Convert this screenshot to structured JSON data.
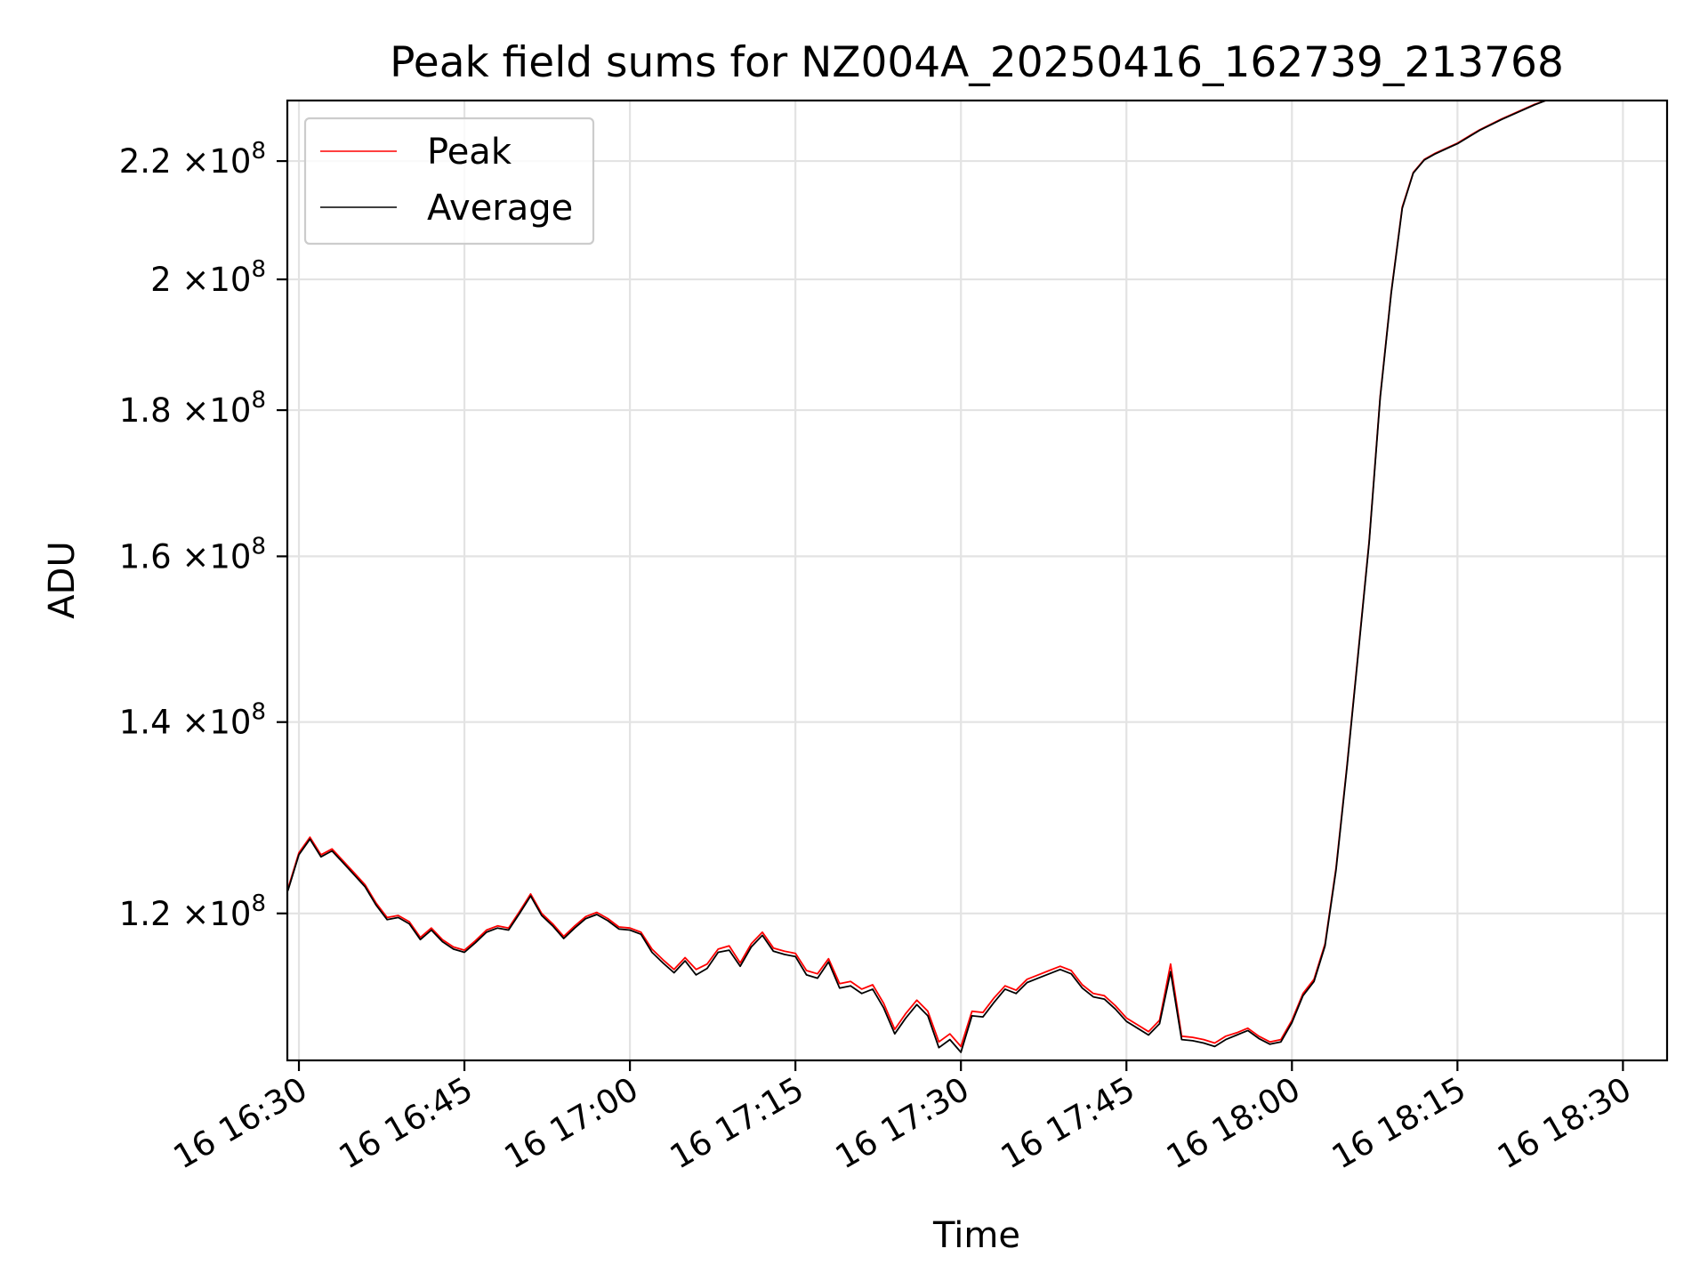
{
  "chart_data": {
    "type": "line",
    "title": "Peak field sums for NZ004A_20250416_162739_213768",
    "xlabel": "Time",
    "ylabel": "ADU",
    "y_scale": "log",
    "grid": true,
    "legend_position": "upper-left",
    "x_ticks": [
      "16 16:30",
      "16 16:45",
      "16 17:00",
      "16 17:15",
      "16 17:30",
      "16 17:45",
      "16 18:00",
      "16 18:15",
      "16 18:30"
    ],
    "y_ticks": [
      {
        "value": 120000000,
        "mantissa": "1.2",
        "times": "×10",
        "exp": "8"
      },
      {
        "value": 140000000,
        "mantissa": "1.4",
        "times": "×10",
        "exp": "8"
      },
      {
        "value": 160000000,
        "mantissa": "1.6",
        "times": "×10",
        "exp": "8"
      },
      {
        "value": 180000000,
        "mantissa": "1.8",
        "times": "×10",
        "exp": "8"
      },
      {
        "value": 200000000,
        "mantissa": "2",
        "times": "×10",
        "exp": "8"
      },
      {
        "value": 220000000,
        "mantissa": "2.2",
        "times": "×10",
        "exp": "8"
      }
    ],
    "xlim": [
      "2025-04-16 16:28:57",
      "2025-04-16 18:34:00"
    ],
    "ylim": [
      106600000,
      231000000
    ],
    "series": [
      {
        "name": "Peak",
        "color": "#ff0000",
        "x": [
          "2025-04-16 16:29:00",
          "2025-04-16 16:30:00",
          "2025-04-16 16:31:00",
          "2025-04-16 16:32:00",
          "2025-04-16 16:33:00",
          "2025-04-16 16:34:00",
          "2025-04-16 16:35:00",
          "2025-04-16 16:36:00",
          "2025-04-16 16:37:00",
          "2025-04-16 16:38:00",
          "2025-04-16 16:39:00",
          "2025-04-16 16:40:00",
          "2025-04-16 16:41:00",
          "2025-04-16 16:42:00",
          "2025-04-16 16:43:00",
          "2025-04-16 16:44:00",
          "2025-04-16 16:45:00",
          "2025-04-16 16:46:00",
          "2025-04-16 16:47:00",
          "2025-04-16 16:48:00",
          "2025-04-16 16:49:00",
          "2025-04-16 16:50:00",
          "2025-04-16 16:51:00",
          "2025-04-16 16:52:00",
          "2025-04-16 16:53:00",
          "2025-04-16 16:54:00",
          "2025-04-16 16:55:00",
          "2025-04-16 16:56:00",
          "2025-04-16 16:57:00",
          "2025-04-16 16:58:00",
          "2025-04-16 16:59:00",
          "2025-04-16 17:00:00",
          "2025-04-16 17:01:00",
          "2025-04-16 17:02:00",
          "2025-04-16 17:03:00",
          "2025-04-16 17:04:00",
          "2025-04-16 17:05:00",
          "2025-04-16 17:06:00",
          "2025-04-16 17:07:00",
          "2025-04-16 17:08:00",
          "2025-04-16 17:09:00",
          "2025-04-16 17:10:00",
          "2025-04-16 17:11:00",
          "2025-04-16 17:12:00",
          "2025-04-16 17:13:00",
          "2025-04-16 17:14:00",
          "2025-04-16 17:15:00",
          "2025-04-16 17:16:00",
          "2025-04-16 17:17:00",
          "2025-04-16 17:18:00",
          "2025-04-16 17:19:00",
          "2025-04-16 17:20:00",
          "2025-04-16 17:21:00",
          "2025-04-16 17:22:00",
          "2025-04-16 17:23:00",
          "2025-04-16 17:24:00",
          "2025-04-16 17:25:00",
          "2025-04-16 17:26:00",
          "2025-04-16 17:27:00",
          "2025-04-16 17:28:00",
          "2025-04-16 17:29:00",
          "2025-04-16 17:30:00",
          "2025-04-16 17:31:00",
          "2025-04-16 17:32:00",
          "2025-04-16 17:33:00",
          "2025-04-16 17:34:00",
          "2025-04-16 17:35:00",
          "2025-04-16 17:36:00",
          "2025-04-16 17:37:00",
          "2025-04-16 17:38:00",
          "2025-04-16 17:39:00",
          "2025-04-16 17:40:00",
          "2025-04-16 17:41:00",
          "2025-04-16 17:42:00",
          "2025-04-16 17:43:00",
          "2025-04-16 17:44:00",
          "2025-04-16 17:45:00",
          "2025-04-16 17:46:00",
          "2025-04-16 17:47:00",
          "2025-04-16 17:48:00",
          "2025-04-16 17:49:00",
          "2025-04-16 17:50:00",
          "2025-04-16 17:51:00",
          "2025-04-16 17:52:00",
          "2025-04-16 17:53:00",
          "2025-04-16 17:54:00",
          "2025-04-16 17:55:00",
          "2025-04-16 17:56:00",
          "2025-04-16 17:57:00",
          "2025-04-16 17:58:00",
          "2025-04-16 17:59:00",
          "2025-04-16 18:00:00",
          "2025-04-16 18:01:00",
          "2025-04-16 18:02:00",
          "2025-04-16 18:03:00",
          "2025-04-16 18:04:00",
          "2025-04-16 18:05:00",
          "2025-04-16 18:06:00",
          "2025-04-16 18:07:00",
          "2025-04-16 18:08:00",
          "2025-04-16 18:09:00",
          "2025-04-16 18:10:00",
          "2025-04-16 18:11:00",
          "2025-04-16 18:12:00",
          "2025-04-16 18:13:00",
          "2025-04-16 18:14:00",
          "2025-04-16 18:15:00",
          "2025-04-16 18:16:00",
          "2025-04-16 18:17:00",
          "2025-04-16 18:18:00",
          "2025-04-16 18:19:00",
          "2025-04-16 18:20:00",
          "2025-04-16 18:21:00",
          "2025-04-16 18:22:00",
          "2025-04-16 18:23:00",
          "2025-04-16 18:24:00"
        ],
        "values": [
          122400000,
          126000000,
          127600000,
          125800000,
          126400000,
          125200000,
          124000000,
          122800000,
          121000000,
          119600000,
          119800000,
          119200000,
          117700000,
          118600000,
          117500000,
          116800000,
          116500000,
          117400000,
          118400000,
          118800000,
          118600000,
          120200000,
          121900000,
          120000000,
          119000000,
          117800000,
          118800000,
          119700000,
          120100000,
          119500000,
          118700000,
          118600000,
          118200000,
          116600000,
          115600000,
          114700000,
          115800000,
          114700000,
          115200000,
          116600000,
          116900000,
          115300000,
          117100000,
          118200000,
          116700000,
          116400000,
          116200000,
          114600000,
          114300000,
          115700000,
          113400000,
          113600000,
          112900000,
          113300000,
          111600000,
          109300000,
          110700000,
          111900000,
          110900000,
          108200000,
          108900000,
          107800000,
          110900000,
          110800000,
          112100000,
          113200000,
          112800000,
          113800000,
          114200000,
          114600000,
          115000000,
          114600000,
          113300000,
          112500000,
          112300000,
          111400000,
          110300000,
          109700000,
          109100000,
          110100000,
          115200000,
          108700000,
          108600000,
          108400000,
          108100000,
          108700000,
          109000000,
          109400000,
          108700000,
          108200000,
          108400000,
          110100000,
          112500000,
          113800000,
          117100000,
          124500000,
          135300000,
          148000000,
          162000000,
          182000000,
          198000000,
          212000000,
          218000000,
          220300000,
          221400000,
          222300000,
          223200000,
          224400000,
          225600000,
          226600000,
          227600000,
          228500000,
          229400000,
          230300000,
          231000000,
          231000000
        ],
        "x_note": ""
      },
      {
        "name": "Average",
        "color": "#000000",
        "x": [
          "2025-04-16 16:29:00",
          "2025-04-16 16:30:00",
          "2025-04-16 16:31:00",
          "2025-04-16 16:32:00",
          "2025-04-16 16:33:00",
          "2025-04-16 16:34:00",
          "2025-04-16 16:35:00",
          "2025-04-16 16:36:00",
          "2025-04-16 16:37:00",
          "2025-04-16 16:38:00",
          "2025-04-16 16:39:00",
          "2025-04-16 16:40:00",
          "2025-04-16 16:41:00",
          "2025-04-16 16:42:00",
          "2025-04-16 16:43:00",
          "2025-04-16 16:44:00",
          "2025-04-16 16:45:00",
          "2025-04-16 16:46:00",
          "2025-04-16 16:47:00",
          "2025-04-16 16:48:00",
          "2025-04-16 16:49:00",
          "2025-04-16 16:50:00",
          "2025-04-16 16:51:00",
          "2025-04-16 16:52:00",
          "2025-04-16 16:53:00",
          "2025-04-16 16:54:00",
          "2025-04-16 16:55:00",
          "2025-04-16 16:56:00",
          "2025-04-16 16:57:00",
          "2025-04-16 16:58:00",
          "2025-04-16 16:59:00",
          "2025-04-16 17:00:00",
          "2025-04-16 17:01:00",
          "2025-04-16 17:02:00",
          "2025-04-16 17:03:00",
          "2025-04-16 17:04:00",
          "2025-04-16 17:05:00",
          "2025-04-16 17:06:00",
          "2025-04-16 17:07:00",
          "2025-04-16 17:08:00",
          "2025-04-16 17:09:00",
          "2025-04-16 17:10:00",
          "2025-04-16 17:11:00",
          "2025-04-16 17:12:00",
          "2025-04-16 17:13:00",
          "2025-04-16 17:14:00",
          "2025-04-16 17:15:00",
          "2025-04-16 17:16:00",
          "2025-04-16 17:17:00",
          "2025-04-16 17:18:00",
          "2025-04-16 17:19:00",
          "2025-04-16 17:20:00",
          "2025-04-16 17:21:00",
          "2025-04-16 17:22:00",
          "2025-04-16 17:23:00",
          "2025-04-16 17:24:00",
          "2025-04-16 17:25:00",
          "2025-04-16 17:26:00",
          "2025-04-16 17:27:00",
          "2025-04-16 17:28:00",
          "2025-04-16 17:29:00",
          "2025-04-16 17:30:00",
          "2025-04-16 17:31:00",
          "2025-04-16 17:32:00",
          "2025-04-16 17:33:00",
          "2025-04-16 17:34:00",
          "2025-04-16 17:35:00",
          "2025-04-16 17:36:00",
          "2025-04-16 17:37:00",
          "2025-04-16 17:38:00",
          "2025-04-16 17:39:00",
          "2025-04-16 17:40:00",
          "2025-04-16 17:41:00",
          "2025-04-16 17:42:00",
          "2025-04-16 17:43:00",
          "2025-04-16 17:44:00",
          "2025-04-16 17:45:00",
          "2025-04-16 17:46:00",
          "2025-04-16 17:47:00",
          "2025-04-16 17:48:00",
          "2025-04-16 17:49:00",
          "2025-04-16 17:50:00",
          "2025-04-16 17:51:00",
          "2025-04-16 17:52:00",
          "2025-04-16 17:53:00",
          "2025-04-16 17:54:00",
          "2025-04-16 17:55:00",
          "2025-04-16 17:56:00",
          "2025-04-16 17:57:00",
          "2025-04-16 17:58:00",
          "2025-04-16 17:59:00",
          "2025-04-16 18:00:00",
          "2025-04-16 18:01:00",
          "2025-04-16 18:02:00",
          "2025-04-16 18:03:00",
          "2025-04-16 18:04:00",
          "2025-04-16 18:05:00",
          "2025-04-16 18:06:00",
          "2025-04-16 18:07:00",
          "2025-04-16 18:08:00",
          "2025-04-16 18:09:00",
          "2025-04-16 18:10:00",
          "2025-04-16 18:11:00",
          "2025-04-16 18:12:00",
          "2025-04-16 18:13:00",
          "2025-04-16 18:14:00",
          "2025-04-16 18:15:00",
          "2025-04-16 18:16:00",
          "2025-04-16 18:17:00",
          "2025-04-16 18:18:00",
          "2025-04-16 18:19:00",
          "2025-04-16 18:20:00",
          "2025-04-16 18:21:00",
          "2025-04-16 18:22:00",
          "2025-04-16 18:23:00",
          "2025-04-16 18:24:00"
        ],
        "values": [
          122200000,
          125800000,
          127400000,
          125600000,
          126200000,
          125000000,
          123800000,
          122600000,
          120800000,
          119400000,
          119600000,
          119000000,
          117500000,
          118400000,
          117300000,
          116600000,
          116300000,
          117200000,
          118200000,
          118600000,
          118400000,
          120000000,
          121700000,
          119800000,
          118800000,
          117600000,
          118600000,
          119500000,
          119900000,
          119300000,
          118500000,
          118400000,
          118000000,
          116300000,
          115300000,
          114400000,
          115500000,
          114200000,
          114800000,
          116300000,
          116500000,
          115000000,
          116800000,
          117900000,
          116400000,
          116100000,
          115900000,
          114200000,
          113900000,
          115400000,
          113000000,
          113200000,
          112500000,
          112900000,
          111200000,
          108900000,
          110300000,
          111500000,
          110500000,
          107700000,
          108400000,
          107300000,
          110500000,
          110400000,
          111700000,
          112900000,
          112500000,
          113500000,
          113900000,
          114300000,
          114700000,
          114300000,
          113000000,
          112200000,
          112000000,
          111100000,
          110000000,
          109400000,
          108800000,
          109800000,
          114500000,
          108400000,
          108300000,
          108100000,
          107800000,
          108400000,
          108800000,
          109200000,
          108500000,
          108000000,
          108200000,
          109900000,
          112300000,
          113600000,
          116900000,
          124300000,
          135100000,
          147800000,
          161800000,
          181800000,
          197800000,
          211800000,
          217900000,
          220200000,
          221300000,
          222200000,
          223100000,
          224300000,
          225500000,
          226500000,
          227500000,
          228400000,
          229300000,
          230200000,
          231000000,
          231000000
        ]
      }
    ]
  }
}
